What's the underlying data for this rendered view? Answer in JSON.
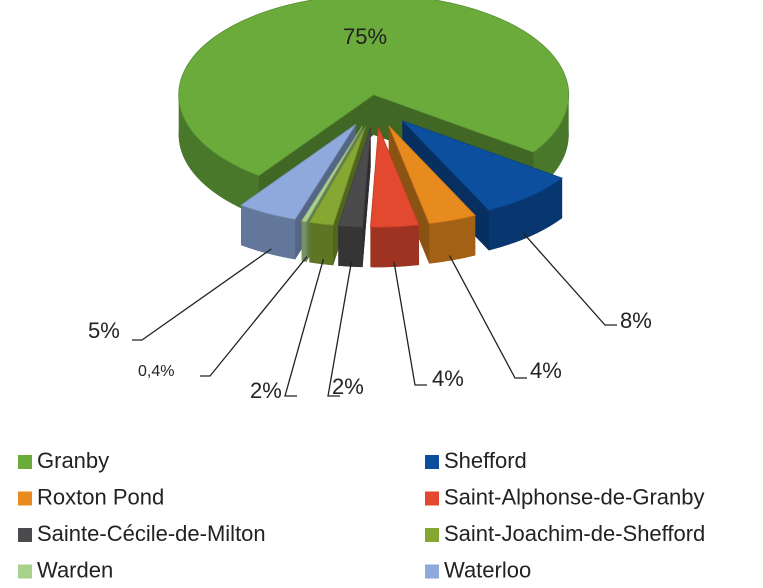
{
  "chart_data": {
    "type": "pie",
    "categories": [
      "Granby",
      "Shefford",
      "Roxton Pond",
      "Saint-Alphonse-de-Granby",
      "Sainte-Cécile-de-Milton",
      "Saint-Joachim-de-Shefford",
      "Warden",
      "Waterloo"
    ],
    "values": [
      75,
      8,
      4,
      4,
      2,
      2,
      0.4,
      5
    ],
    "value_labels": [
      "75%",
      "8%",
      "4%",
      "4%",
      "2%",
      "2%",
      "0,4%",
      "5%"
    ],
    "colors": [
      "#6aab3c",
      "#0b4f9e",
      "#e88b1e",
      "#e2492f",
      "#4b4b4d",
      "#86a832",
      "#a9d18e",
      "#8eaadc"
    ]
  }
}
